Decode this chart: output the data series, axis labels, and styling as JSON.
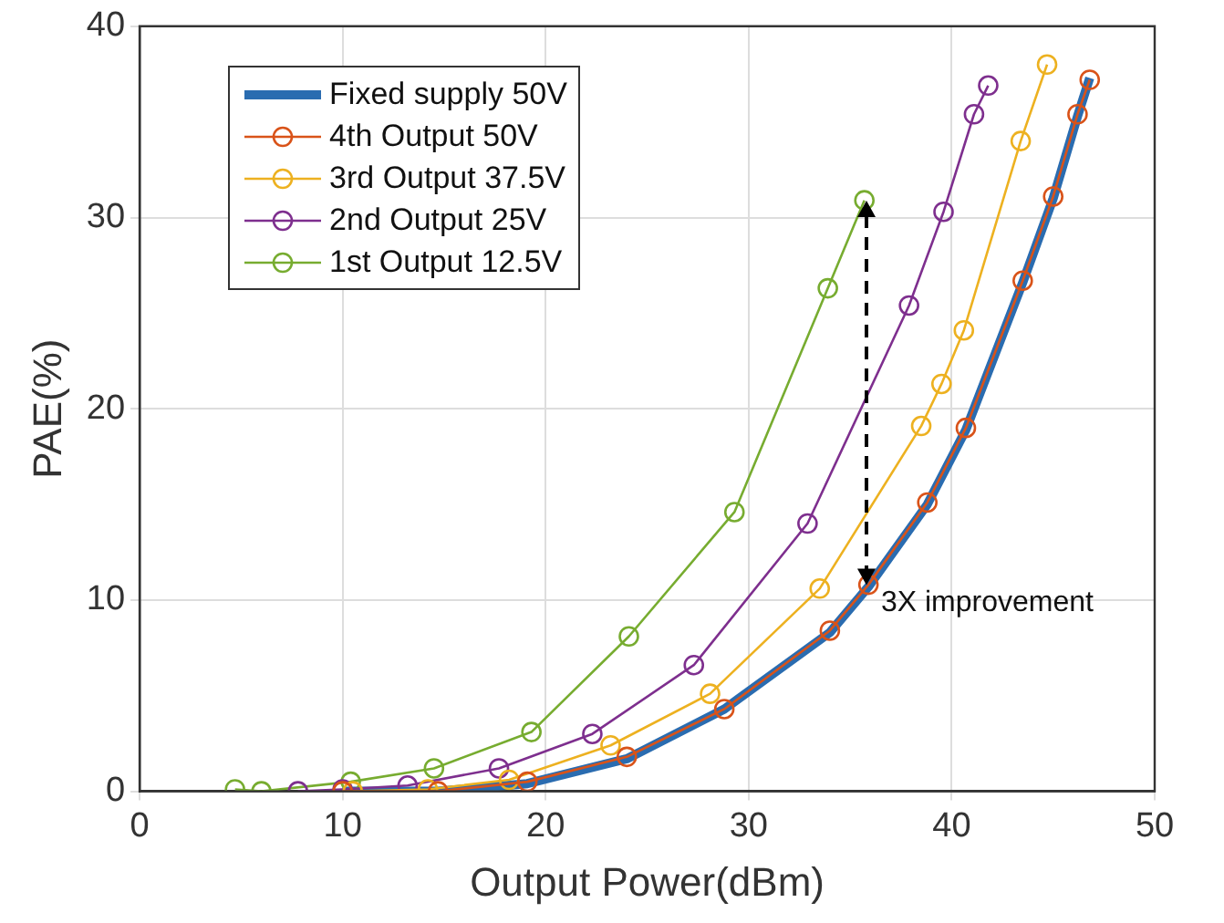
{
  "chart_data": {
    "type": "line",
    "xlabel": "Output Power(dBm)",
    "ylabel": "PAE(%)",
    "xlim": [
      0,
      50
    ],
    "xticks": [
      0,
      10,
      20,
      30,
      40,
      50
    ],
    "ylim": [
      0,
      40
    ],
    "yticks": [
      0,
      10,
      20,
      30,
      40
    ],
    "grid": true,
    "legend": "top left",
    "marker": "circle",
    "series": [
      {
        "name": "Fixed supply 50V",
        "color": "#2a6cb0",
        "marker": "none",
        "x": [
          10.0,
          14.7,
          19.1,
          24.0,
          28.8,
          34.0,
          35.9,
          38.8,
          40.7,
          43.5,
          45.0,
          46.2,
          46.8
        ],
        "values": [
          0,
          0,
          0.4,
          1.7,
          4.3,
          8.3,
          10.7,
          15.0,
          18.9,
          26.6,
          31.0,
          35.3,
          37.3
        ]
      },
      {
        "name": "4th Output 50V",
        "color": "#d95319",
        "x": [
          10.0,
          14.7,
          19.1,
          24.0,
          28.8,
          34.0,
          35.9,
          38.8,
          40.7,
          43.5,
          45.0,
          46.2,
          46.8
        ],
        "values": [
          0,
          0,
          0.5,
          1.8,
          4.3,
          8.4,
          10.8,
          15.1,
          19.0,
          26.7,
          31.1,
          35.4,
          37.2
        ]
      },
      {
        "name": "3rd Output 37.5V",
        "color": "#edb120",
        "x": [
          10.5,
          14.2,
          18.2,
          23.2,
          28.1,
          33.5,
          38.5,
          39.5,
          40.6,
          43.4,
          44.7
        ],
        "values": [
          0,
          0.1,
          0.6,
          2.4,
          5.1,
          10.6,
          19.1,
          21.3,
          24.1,
          34.0,
          38.0
        ]
      },
      {
        "name": "2nd Output 25V",
        "color": "#7e2f8e",
        "x": [
          7.8,
          10.0,
          13.2,
          17.7,
          22.3,
          27.3,
          32.9,
          37.9,
          39.6,
          41.1,
          41.8
        ],
        "values": [
          0,
          0.1,
          0.3,
          1.2,
          3.0,
          6.6,
          14.0,
          25.4,
          30.3,
          35.4,
          36.9
        ]
      },
      {
        "name": "1st Output 12.5V",
        "color": "#77ac30",
        "x": [
          4.7,
          6.0,
          10.4,
          14.5,
          19.3,
          24.1,
          29.3,
          33.9,
          35.7
        ],
        "values": [
          0.1,
          0,
          0.5,
          1.2,
          3.1,
          8.1,
          14.6,
          26.3,
          30.9
        ]
      }
    ],
    "annotations": [
      {
        "text": "3X improvement",
        "x": 35.8,
        "y": 10.8
      }
    ]
  }
}
